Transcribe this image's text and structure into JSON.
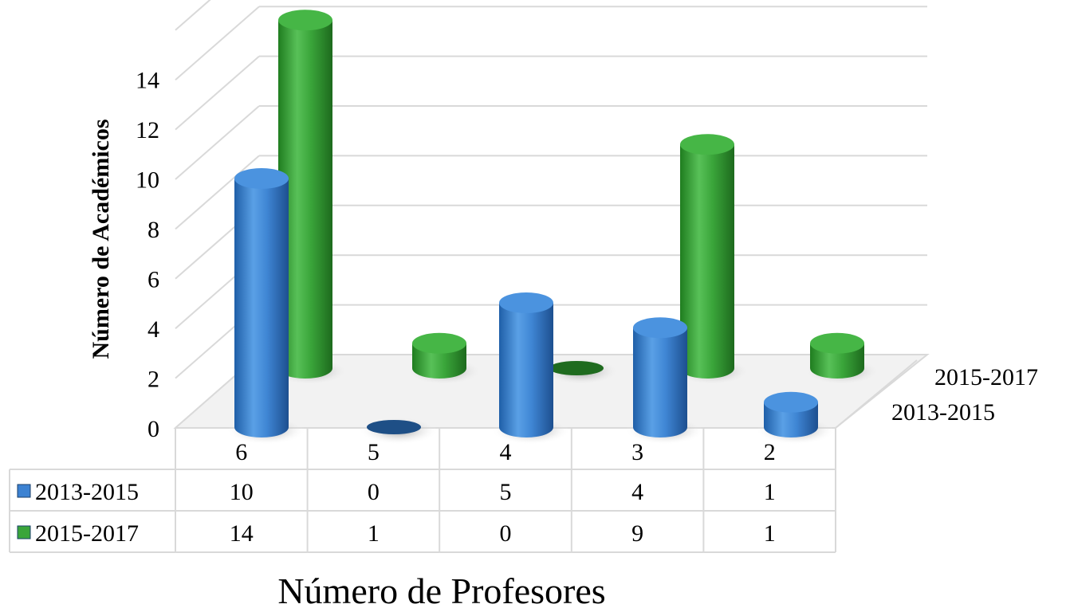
{
  "chart_data": {
    "type": "bar",
    "categories": [
      "6",
      "5",
      "4",
      "3",
      "2"
    ],
    "series": [
      {
        "name": "2013-2015",
        "values": [
          10,
          0,
          5,
          4,
          1
        ]
      },
      {
        "name": "2015-2017",
        "values": [
          14,
          1,
          0,
          9,
          1
        ]
      }
    ],
    "xlabel": "Número de Profesores",
    "ylabel": "Número de Académicos",
    "ylim": [
      0,
      14
    ],
    "yticks": [
      "0",
      "2",
      "4",
      "6",
      "8",
      "10",
      "12",
      "14"
    ],
    "grid": true,
    "legend": "data-table",
    "colors": {
      "series_1": "#3c82d2",
      "series_2": "#3aa53a"
    }
  }
}
